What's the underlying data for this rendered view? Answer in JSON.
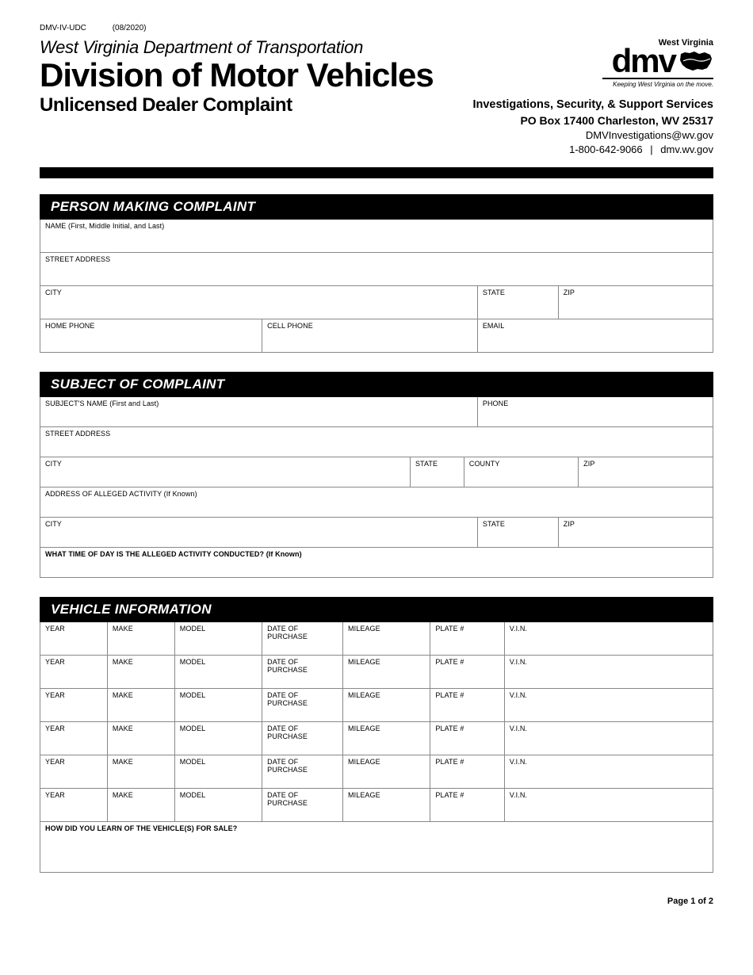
{
  "meta": {
    "form_code": "DMV-IV-UDC",
    "form_date": "(08/2020)"
  },
  "header": {
    "dept": "West Virginia Department of Transportation",
    "division": "Division of Motor Vehicles",
    "form_title": "Unlicensed Dealer Complaint",
    "logo_state": "West Virginia",
    "logo_text": "dmv",
    "logo_tagline": "Keeping West Virginia on the move.",
    "contact_dept": "Investigations, Security, & Support Services",
    "contact_addr": "PO Box 17400  Charleston, WV  25317",
    "contact_email": "DMVInvestigations@wv.gov",
    "contact_phone": "1-800-642-9066",
    "contact_site": "dmv.wv.gov"
  },
  "sections": {
    "complainant": {
      "title": "PERSON MAKING COMPLAINT",
      "labels": {
        "name": "NAME (First, Middle Initial, and Last)",
        "street": "STREET ADDRESS",
        "city": "CITY",
        "state": "STATE",
        "zip": "ZIP",
        "home_phone": "HOME PHONE",
        "cell_phone": "CELL PHONE",
        "email": "EMAIL"
      }
    },
    "subject": {
      "title": "SUBJECT OF COMPLAINT",
      "labels": {
        "name": "SUBJECT'S NAME (First and Last)",
        "phone": "PHONE",
        "street": "STREET ADDRESS",
        "city": "CITY",
        "state": "STATE",
        "county": "COUNTY",
        "zip": "ZIP",
        "activity_addr": "ADDRESS OF ALLEGED ACTIVITY (If Known)",
        "time_of_day": "WHAT TIME OF DAY IS THE ALLEGED ACTIVITY CONDUCTED?  (If Known)"
      }
    },
    "vehicle": {
      "title": "VEHICLE INFORMATION",
      "labels": {
        "year": "YEAR",
        "make": "MAKE",
        "model": "MODEL",
        "date_purchase": "DATE OF PURCHASE",
        "mileage": "MILEAGE",
        "plate": "PLATE #",
        "vin": "V.I.N.",
        "how_learn": "HOW DID YOU LEARN OF THE VEHICLE(S) FOR SALE?"
      },
      "row_count": 6
    }
  },
  "footer": {
    "page": "Page 1 of 2"
  },
  "style": {
    "section_bg": "#000000",
    "section_fg": "#ffffff",
    "border_color": "#888888",
    "label_font_size": 9
  }
}
